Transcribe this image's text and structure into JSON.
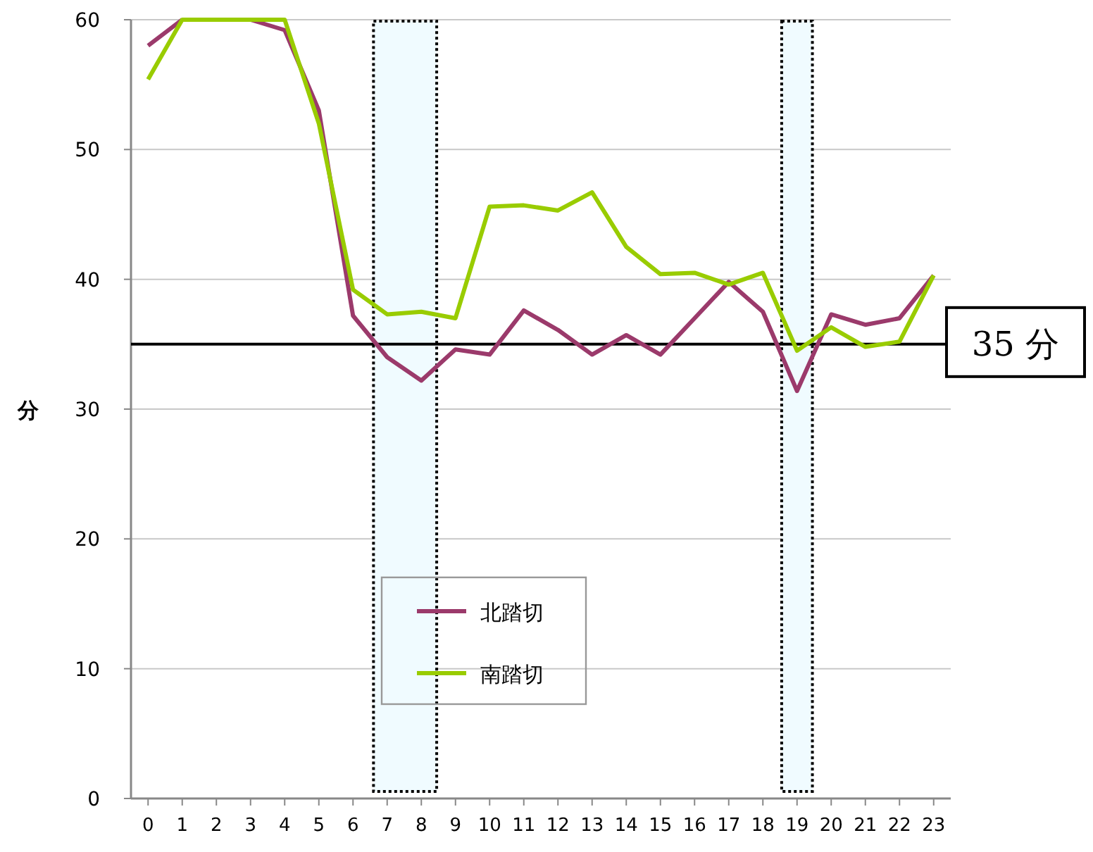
{
  "chart_data": {
    "type": "line",
    "ylabel": "分",
    "x": [
      0,
      1,
      2,
      3,
      4,
      5,
      6,
      7,
      8,
      9,
      10,
      11,
      12,
      13,
      14,
      15,
      16,
      17,
      18,
      19,
      20,
      21,
      22,
      23
    ],
    "xlim": [
      -0.5,
      23.5
    ],
    "xticks": [
      0,
      1,
      2,
      3,
      4,
      5,
      6,
      7,
      8,
      9,
      10,
      11,
      12,
      13,
      14,
      15,
      16,
      17,
      18,
      19,
      20,
      21,
      22,
      23
    ],
    "ylim": [
      0,
      60
    ],
    "yticks": [
      0,
      10,
      20,
      30,
      40,
      50,
      60
    ],
    "grid": "y",
    "legend": "bottom",
    "marker": "none",
    "line_style": "solid",
    "series": [
      {
        "name": "北踏切",
        "color": "#9b3a6b",
        "values": [
          58,
          60,
          null,
          60,
          59.2,
          53,
          37.2,
          34,
          32.2,
          34.6,
          34.2,
          37.6,
          36.1,
          34.2,
          35.7,
          34.2,
          37,
          39.8,
          37.5,
          31.4,
          37.3,
          36.5,
          37,
          40.3
        ]
      },
      {
        "name": "南踏切",
        "color": "#99cc00",
        "values": [
          55.4,
          60,
          60,
          60,
          60,
          52,
          39.2,
          37.3,
          37.5,
          37,
          45.6,
          45.7,
          45.3,
          46.7,
          42.5,
          40.4,
          40.5,
          39.6,
          40.5,
          34.5,
          36.3,
          34.8,
          35.2,
          40.3
        ]
      }
    ],
    "ref_lines": [
      {
        "axis": "y",
        "value": 35,
        "label": "35 分",
        "color": "#000000"
      }
    ],
    "bands": [
      {
        "axis": "x",
        "from": 6.6,
        "to": 8.45,
        "color": "#f0fbff"
      },
      {
        "axis": "x",
        "from": 18.55,
        "to": 19.45,
        "color": "#f0fbff"
      }
    ]
  }
}
